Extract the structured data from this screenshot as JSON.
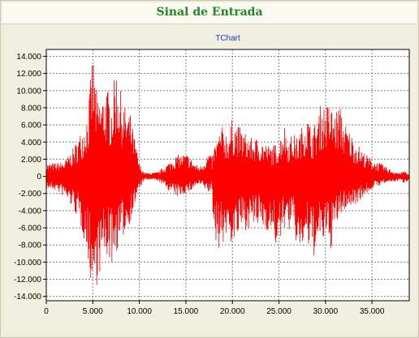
{
  "window": {
    "title": "Sinal de Entrada"
  },
  "chart_data": {
    "type": "line",
    "title": "TChart",
    "xlabel": "",
    "ylabel": "",
    "xlim": [
      0,
      39000
    ],
    "ylim": [
      -14500,
      14800
    ],
    "x_ticks": [
      0,
      5000,
      10000,
      15000,
      20000,
      25000,
      30000,
      35000
    ],
    "x_tick_labels": [
      "0",
      "5.000",
      "10.000",
      "15.000",
      "20.000",
      "25.000",
      "30.000",
      "35.000"
    ],
    "y_ticks": [
      14000,
      12000,
      10000,
      8000,
      6000,
      4000,
      2000,
      0,
      -2000,
      -4000,
      -6000,
      -8000,
      -10000,
      -12000,
      -14000
    ],
    "y_tick_labels": [
      "14.000",
      "12.000",
      "10.000",
      "8.000",
      "6.000",
      "4.000",
      "2.000",
      "0",
      "-2.000",
      "-4.000",
      "-6.000",
      "-8.000",
      "-10.000",
      "-12.000",
      "-14.000"
    ],
    "grid": true,
    "legend": "none",
    "series": [
      {
        "color": "#ff0000",
        "envelope_x": [
          0,
          1000,
          2000,
          3000,
          4000,
          4500,
          5000,
          5500,
          6000,
          6500,
          7000,
          7500,
          8000,
          8500,
          9000,
          9500,
          10000,
          10500,
          11000,
          12000,
          13000,
          14000,
          15000,
          15500,
          16000,
          16500,
          17000,
          17500,
          17800,
          18000,
          18500,
          19000,
          19500,
          20000,
          21000,
          22000,
          23000,
          24000,
          25000,
          25500,
          26000,
          26500,
          27000,
          28000,
          28500,
          29000,
          29500,
          30000,
          30500,
          31000,
          31500,
          32000,
          33000,
          34000,
          35000,
          36000,
          37000,
          38000,
          38500,
          39000
        ],
        "envelope_max": [
          1500,
          1600,
          1800,
          3500,
          6000,
          8000,
          14800,
          9000,
          9500,
          10500,
          9000,
          13000,
          10000,
          8000,
          7500,
          4500,
          1500,
          500,
          400,
          500,
          1500,
          2500,
          2700,
          2300,
          1500,
          1200,
          2000,
          3000,
          2000,
          3500,
          5000,
          6000,
          5000,
          6800,
          5500,
          4500,
          4500,
          3500,
          4000,
          6500,
          4500,
          5000,
          4500,
          7500,
          5500,
          6500,
          8500,
          8500,
          8500,
          7500,
          8500,
          6500,
          4500,
          3000,
          2000,
          1500,
          800,
          400,
          700,
          200
        ],
        "envelope_min": [
          -1500,
          -1700,
          -2500,
          -4000,
          -7000,
          -10000,
          -14000,
          -12500,
          -10500,
          -9500,
          -10500,
          -9000,
          -8000,
          -6500,
          -5500,
          -3500,
          -1500,
          -500,
          -400,
          -500,
          -1500,
          -2500,
          -2000,
          -1800,
          -1200,
          -1000,
          -1500,
          -2000,
          -1500,
          -7000,
          -8500,
          -8000,
          -7000,
          -8200,
          -6500,
          -6000,
          -6000,
          -6500,
          -9000,
          -6000,
          -6500,
          -6000,
          -9000,
          -8000,
          -9800,
          -9000,
          -8000,
          -7500,
          -9000,
          -6500,
          -5000,
          -4000,
          -3500,
          -2500,
          -1500,
          -1000,
          -700,
          -500,
          -800,
          -400
        ]
      }
    ]
  }
}
